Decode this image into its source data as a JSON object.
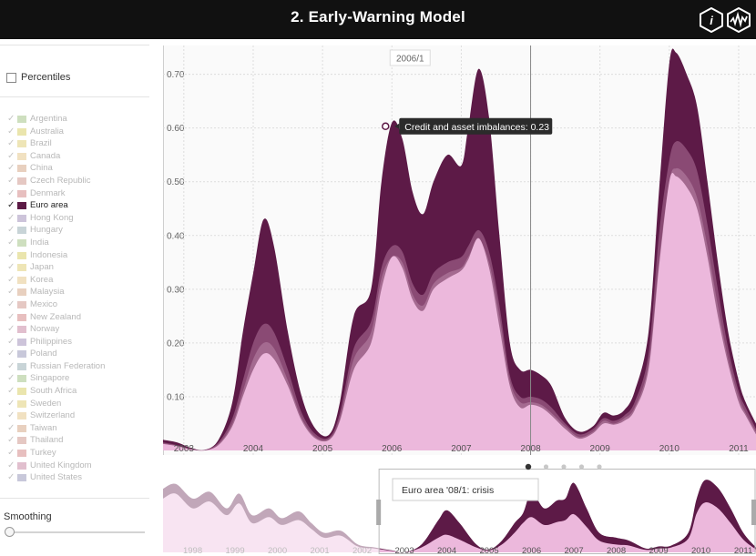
{
  "header": {
    "title": "2. Early-Warning Model",
    "info_label": "i"
  },
  "sidebar": {
    "percentiles_label": "Percentiles",
    "smoothing_label": "Smoothing",
    "smoothing_value": 0,
    "countries": [
      {
        "name": "Argentina",
        "color": "#a6c48a",
        "active": false
      },
      {
        "name": "Australia",
        "color": "#d8cf6a",
        "active": false
      },
      {
        "name": "Brazil",
        "color": "#e0cf7a",
        "active": false
      },
      {
        "name": "Canada",
        "color": "#e6c98e",
        "active": false
      },
      {
        "name": "China",
        "color": "#d6a98a",
        "active": false
      },
      {
        "name": "Czech Republic",
        "color": "#cf9a92",
        "active": false
      },
      {
        "name": "Denmark",
        "color": "#d48a8a",
        "active": false
      },
      {
        "name": "Euro area",
        "color": "#5c1a45",
        "active": true
      },
      {
        "name": "Hong Kong",
        "color": "#a494bc",
        "active": false
      },
      {
        "name": "Hungary",
        "color": "#9ab0b6",
        "active": false
      },
      {
        "name": "India",
        "color": "#a6c48a",
        "active": false
      },
      {
        "name": "Indonesia",
        "color": "#d8cf6a",
        "active": false
      },
      {
        "name": "Japan",
        "color": "#e0cf7a",
        "active": false
      },
      {
        "name": "Korea",
        "color": "#e6c98e",
        "active": false
      },
      {
        "name": "Malaysia",
        "color": "#d6a98a",
        "active": false
      },
      {
        "name": "Mexico",
        "color": "#cf9a92",
        "active": false
      },
      {
        "name": "New Zealand",
        "color": "#d48a8a",
        "active": false
      },
      {
        "name": "Norway",
        "color": "#c98aa6",
        "active": false
      },
      {
        "name": "Philippines",
        "color": "#a494bc",
        "active": false
      },
      {
        "name": "Poland",
        "color": "#9a9abc",
        "active": false
      },
      {
        "name": "Russian Federation",
        "color": "#9ab0b6",
        "active": false
      },
      {
        "name": "Singapore",
        "color": "#a6c48a",
        "active": false
      },
      {
        "name": "South Africa",
        "color": "#d8cf6a",
        "active": false
      },
      {
        "name": "Sweden",
        "color": "#e0cf7a",
        "active": false
      },
      {
        "name": "Switzerland",
        "color": "#e6c98e",
        "active": false
      },
      {
        "name": "Taiwan",
        "color": "#d6a98a",
        "active": false
      },
      {
        "name": "Thailand",
        "color": "#cf9a92",
        "active": false
      },
      {
        "name": "Turkey",
        "color": "#d48a8a",
        "active": false
      },
      {
        "name": "United Kingdom",
        "color": "#c98aa6",
        "active": false
      },
      {
        "name": "United States",
        "color": "#9a9abc",
        "active": false
      }
    ]
  },
  "chart_data": [
    {
      "type": "area",
      "title": "",
      "xlabel": "",
      "ylabel": "",
      "x_ticks": [
        "2003",
        "2004",
        "2005",
        "2006",
        "2007",
        "2008",
        "2009",
        "2010",
        "2011"
      ],
      "y_ticks": [
        "0.10",
        "0.20",
        "0.30",
        "0.40",
        "0.50",
        "0.60",
        "0.70"
      ],
      "ylim": [
        0,
        0.74
      ],
      "xlim": [
        2002.7,
        2011.25
      ],
      "grid": true,
      "x": [
        2002.7,
        2002.9,
        2003.1,
        2003.3,
        2003.5,
        2003.7,
        2003.85,
        2004.0,
        2004.15,
        2004.3,
        2004.5,
        2004.7,
        2004.9,
        2005.1,
        2005.25,
        2005.45,
        2005.7,
        2005.85,
        2006.0,
        2006.15,
        2006.3,
        2006.45,
        2006.6,
        2006.8,
        2007.0,
        2007.1,
        2007.25,
        2007.4,
        2007.55,
        2007.7,
        2007.85,
        2008.0,
        2008.15,
        2008.3,
        2008.5,
        2008.7,
        2008.9,
        2009.05,
        2009.2,
        2009.35,
        2009.5,
        2009.7,
        2009.85,
        2010.0,
        2010.1,
        2010.25,
        2010.4,
        2010.55,
        2010.7,
        2010.85,
        2011.0,
        2011.1,
        2011.25
      ],
      "series": [
        {
          "name": "Credit and asset imbalances",
          "color": "#5d1a47",
          "values": [
            0.02,
            0.015,
            0.005,
            0.001,
            0.02,
            0.09,
            0.22,
            0.33,
            0.43,
            0.38,
            0.22,
            0.1,
            0.04,
            0.03,
            0.09,
            0.25,
            0.3,
            0.5,
            0.61,
            0.58,
            0.48,
            0.44,
            0.5,
            0.55,
            0.53,
            0.6,
            0.71,
            0.62,
            0.4,
            0.2,
            0.15,
            0.15,
            0.14,
            0.12,
            0.06,
            0.035,
            0.045,
            0.07,
            0.065,
            0.075,
            0.11,
            0.22,
            0.48,
            0.72,
            0.74,
            0.7,
            0.64,
            0.5,
            0.35,
            0.22,
            0.13,
            0.09,
            0.05
          ]
        },
        {
          "name": "",
          "color": "#8a4a74",
          "values": [
            0.015,
            0.01,
            0.003,
            0.001,
            0.015,
            0.06,
            0.13,
            0.2,
            0.235,
            0.22,
            0.15,
            0.07,
            0.03,
            0.025,
            0.07,
            0.19,
            0.24,
            0.34,
            0.38,
            0.37,
            0.31,
            0.29,
            0.33,
            0.35,
            0.36,
            0.38,
            0.41,
            0.37,
            0.27,
            0.14,
            0.1,
            0.1,
            0.095,
            0.08,
            0.05,
            0.03,
            0.04,
            0.06,
            0.055,
            0.065,
            0.09,
            0.18,
            0.4,
            0.54,
            0.575,
            0.56,
            0.52,
            0.42,
            0.3,
            0.19,
            0.11,
            0.08,
            0.04
          ]
        },
        {
          "name": "",
          "color": "#a46a90",
          "values": [
            0.013,
            0.009,
            0.002,
            0.0,
            0.012,
            0.05,
            0.11,
            0.17,
            0.2,
            0.19,
            0.13,
            0.06,
            0.025,
            0.022,
            0.06,
            0.17,
            0.22,
            0.32,
            0.36,
            0.35,
            0.29,
            0.27,
            0.31,
            0.33,
            0.34,
            0.36,
            0.39,
            0.35,
            0.25,
            0.13,
            0.09,
            0.09,
            0.085,
            0.07,
            0.045,
            0.025,
            0.035,
            0.055,
            0.05,
            0.06,
            0.08,
            0.16,
            0.35,
            0.5,
            0.525,
            0.51,
            0.47,
            0.38,
            0.27,
            0.17,
            0.1,
            0.07,
            0.035
          ]
        },
        {
          "name": "",
          "color": "#ecb8dc",
          "values": [
            0.012,
            0.008,
            0.002,
            0.0,
            0.01,
            0.045,
            0.1,
            0.15,
            0.18,
            0.17,
            0.12,
            0.055,
            0.022,
            0.02,
            0.055,
            0.15,
            0.2,
            0.3,
            0.36,
            0.34,
            0.28,
            0.26,
            0.3,
            0.32,
            0.335,
            0.355,
            0.395,
            0.34,
            0.23,
            0.12,
            0.08,
            0.085,
            0.08,
            0.065,
            0.04,
            0.022,
            0.032,
            0.05,
            0.048,
            0.055,
            0.075,
            0.15,
            0.34,
            0.5,
            0.51,
            0.49,
            0.45,
            0.36,
            0.25,
            0.16,
            0.09,
            0.065,
            0.03
          ]
        }
      ],
      "cursor": {
        "x_label": "2006/1",
        "x": 2006.0,
        "point_value": 0.61
      },
      "tooltip": "Credit and asset imbalances: 0.23",
      "crisis_marker_x": 2008.0
    },
    {
      "type": "area",
      "title": "",
      "x_ticks": [
        "1998",
        "1999",
        "2000",
        "2001",
        "2002",
        "2003",
        "2004",
        "2005",
        "2006",
        "2007",
        "2008",
        "2009",
        "2010",
        "2011"
      ],
      "xlim": [
        1997.3,
        2011.3
      ],
      "ylim": [
        0,
        0.8
      ],
      "brush": [
        2002.4,
        2011.3
      ],
      "x": [
        1997.3,
        1997.6,
        1998.0,
        1998.4,
        1998.8,
        1999.1,
        1999.4,
        1999.8,
        2000.1,
        2000.5,
        2000.8,
        2001.1,
        2001.5,
        2001.9,
        2002.3,
        2002.7,
        2003.0,
        2003.4,
        2003.8,
        2004.0,
        2004.3,
        2004.7,
        2005.0,
        2005.3,
        2005.6,
        2005.8,
        2006.0,
        2006.3,
        2006.6,
        2006.8,
        2007.0,
        2007.3,
        2007.6,
        2008.0,
        2008.3,
        2008.7,
        2009.0,
        2009.3,
        2009.7,
        2009.9,
        2010.1,
        2010.4,
        2010.7,
        2011.0,
        2011.3
      ],
      "series": [
        {
          "name": "Euro area",
          "color": "#5d1a47",
          "values": [
            0.65,
            0.7,
            0.55,
            0.62,
            0.45,
            0.6,
            0.38,
            0.45,
            0.35,
            0.42,
            0.3,
            0.2,
            0.22,
            0.08,
            0.05,
            0.02,
            0.001,
            0.08,
            0.33,
            0.43,
            0.3,
            0.08,
            0.03,
            0.12,
            0.3,
            0.4,
            0.61,
            0.45,
            0.53,
            0.55,
            0.71,
            0.45,
            0.2,
            0.15,
            0.12,
            0.04,
            0.06,
            0.07,
            0.2,
            0.55,
            0.74,
            0.66,
            0.45,
            0.2,
            0.05
          ]
        },
        {
          "name": "",
          "color": "#ecb8dc",
          "values": [
            0.55,
            0.6,
            0.45,
            0.52,
            0.38,
            0.5,
            0.3,
            0.36,
            0.28,
            0.33,
            0.24,
            0.15,
            0.17,
            0.06,
            0.04,
            0.015,
            0.0,
            0.05,
            0.15,
            0.18,
            0.13,
            0.05,
            0.02,
            0.08,
            0.2,
            0.3,
            0.36,
            0.28,
            0.31,
            0.33,
            0.39,
            0.26,
            0.12,
            0.08,
            0.07,
            0.025,
            0.04,
            0.05,
            0.14,
            0.4,
            0.51,
            0.45,
            0.3,
            0.13,
            0.03
          ]
        }
      ],
      "tooltip": "Euro area '08/1: crisis"
    }
  ]
}
